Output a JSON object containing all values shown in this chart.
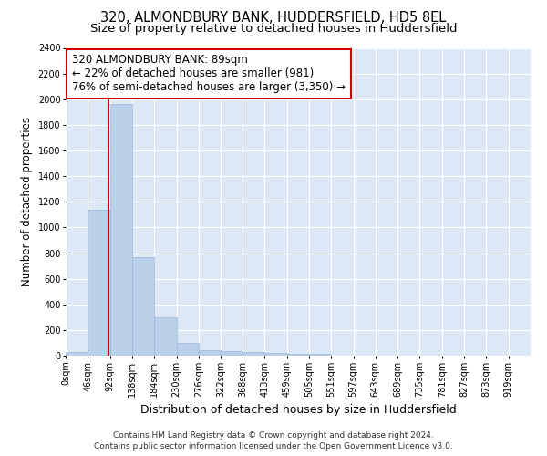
{
  "title": "320, ALMONDBURY BANK, HUDDERSFIELD, HD5 8EL",
  "subtitle": "Size of property relative to detached houses in Huddersfield",
  "xlabel": "Distribution of detached houses by size in Huddersfield",
  "ylabel": "Number of detached properties",
  "footer_line1": "Contains HM Land Registry data © Crown copyright and database right 2024.",
  "footer_line2": "Contains public sector information licensed under the Open Government Licence v3.0.",
  "bin_labels": [
    "0sqm",
    "46sqm",
    "92sqm",
    "138sqm",
    "184sqm",
    "230sqm",
    "276sqm",
    "322sqm",
    "368sqm",
    "413sqm",
    "459sqm",
    "505sqm",
    "551sqm",
    "597sqm",
    "643sqm",
    "689sqm",
    "735sqm",
    "781sqm",
    "827sqm",
    "873sqm",
    "919sqm"
  ],
  "bar_values": [
    30,
    1140,
    1960,
    770,
    300,
    100,
    42,
    35,
    25,
    18,
    12,
    12,
    0,
    0,
    0,
    0,
    0,
    0,
    0,
    0,
    0
  ],
  "bar_color": "#bad0e8",
  "bar_edge_color": "#9ab8d8",
  "background_color": "#dce8f5",
  "grid_color": "#ffffff",
  "annotation_text": "320 ALMONDBURY BANK: 89sqm\n← 22% of detached houses are smaller (981)\n76% of semi-detached houses are larger (3,350) →",
  "annotation_box_color": "#ffffff",
  "annotation_box_edge_color": "#cc0000",
  "vline_color": "#cc0000",
  "vline_x": 89,
  "ylim": [
    0,
    2400
  ],
  "yticks": [
    0,
    200,
    400,
    600,
    800,
    1000,
    1200,
    1400,
    1600,
    1800,
    2000,
    2200,
    2400
  ],
  "bin_edges": [
    0,
    46,
    92,
    138,
    184,
    230,
    276,
    322,
    368,
    413,
    459,
    505,
    551,
    597,
    643,
    689,
    735,
    781,
    827,
    873,
    919,
    965
  ],
  "title_fontsize": 10.5,
  "subtitle_fontsize": 9.5,
  "xlabel_fontsize": 9,
  "ylabel_fontsize": 8.5,
  "tick_fontsize": 7,
  "annotation_fontsize": 8.5,
  "footer_fontsize": 6.5,
  "fig_facecolor": "#ffffff"
}
